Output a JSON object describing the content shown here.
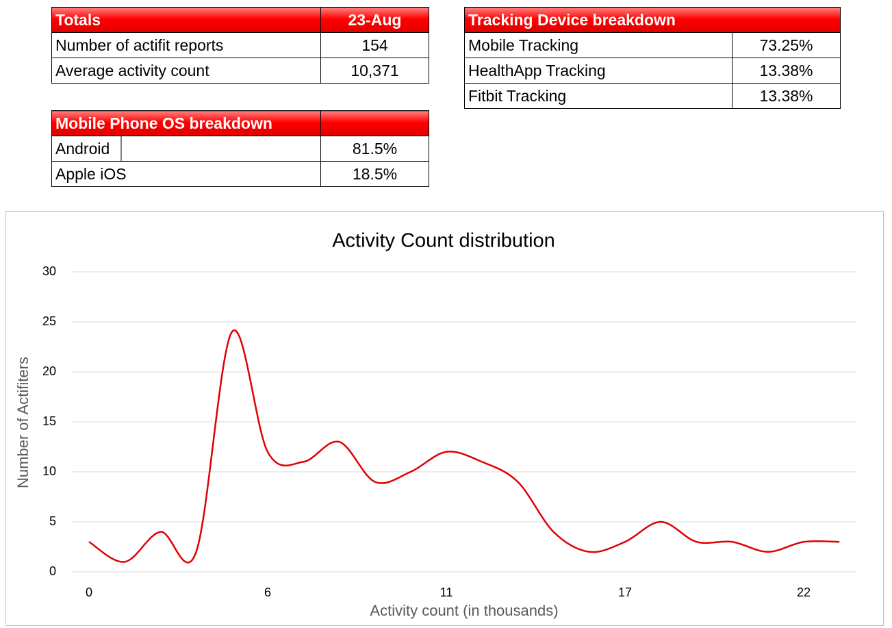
{
  "tables": {
    "totals": {
      "header": [
        "Totals",
        "23-Aug"
      ],
      "rows": [
        [
          "Number of actifit reports",
          "154"
        ],
        [
          "Average activity count",
          "10,371"
        ]
      ]
    },
    "tracking": {
      "header": [
        "Tracking Device breakdown"
      ],
      "rows": [
        [
          "Mobile Tracking",
          "73.25%"
        ],
        [
          "HealthApp Tracking",
          "13.38%"
        ],
        [
          "Fitbit Tracking",
          "13.38%"
        ]
      ]
    },
    "os": {
      "header": [
        "Mobile Phone OS breakdown"
      ],
      "rows": [
        [
          "Android",
          "81.5%"
        ],
        [
          "Apple iOS",
          "18.5%"
        ]
      ]
    }
  },
  "chart_data": {
    "type": "line",
    "title": "Activity Count distribution",
    "x_label": "Activity count (in thousands)",
    "y_label": "Number of Actifiters",
    "categories": [
      "0",
      null,
      null,
      null,
      null,
      "6",
      null,
      null,
      null,
      null,
      "11",
      null,
      null,
      null,
      null,
      "17",
      null,
      null,
      null,
      null,
      "22",
      null
    ],
    "series": [
      {
        "name": "Number of Actifiters",
        "color": "#e00000",
        "values": [
          3,
          1,
          4,
          2,
          24,
          12,
          11,
          13,
          9,
          10,
          12,
          11,
          9,
          4,
          2,
          3,
          5,
          3,
          3,
          2,
          3,
          3
        ]
      }
    ],
    "ylim": [
      0,
      30
    ],
    "yticks": [
      0,
      5,
      10,
      15,
      20,
      25,
      30
    ],
    "grid": true,
    "smooth": true
  }
}
